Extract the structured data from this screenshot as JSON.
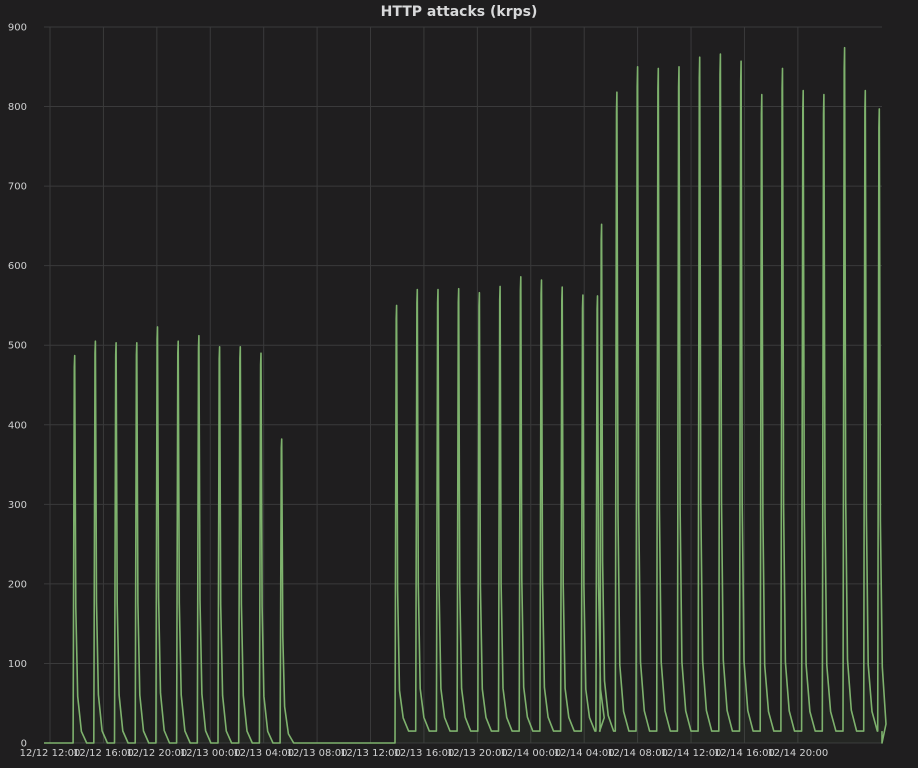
{
  "chart_data": {
    "type": "line",
    "title": "HTTP attacks (krps)",
    "xlabel": "",
    "ylabel": "",
    "ylim": [
      0,
      900
    ],
    "yticks": [
      0,
      100,
      200,
      300,
      400,
      500,
      600,
      700,
      800,
      900
    ],
    "xlim": [
      -0.45,
      62.3
    ],
    "xticks": [
      {
        "x": 0,
        "label": "12/12 12:00"
      },
      {
        "x": 4,
        "label": "12/12 16:00"
      },
      {
        "x": 8,
        "label": "12/12 20:00"
      },
      {
        "x": 12,
        "label": "12/13 00:00"
      },
      {
        "x": 16,
        "label": "12/13 04:00"
      },
      {
        "x": 20,
        "label": "12/13 08:00"
      },
      {
        "x": 24,
        "label": "12/13 12:00"
      },
      {
        "x": 28,
        "label": "12/13 16:00"
      },
      {
        "x": 32,
        "label": "12/13 20:00"
      },
      {
        "x": 36,
        "label": "12/14 00:00"
      },
      {
        "x": 40,
        "label": "12/14 04:00"
      },
      {
        "x": 44,
        "label": "12/14 08:00"
      },
      {
        "x": 48,
        "label": "12/14 12:00"
      },
      {
        "x": 52,
        "label": "12/14 16:00"
      },
      {
        "x": 56,
        "label": "12/14 20:00"
      }
    ],
    "grid": true,
    "line_color": "#7eb26d",
    "series": [
      {
        "name": "",
        "peaks": [
          {
            "x": 1.85,
            "y": 487
          },
          {
            "x": 3.4,
            "y": 505
          },
          {
            "x": 4.95,
            "y": 503
          },
          {
            "x": 6.5,
            "y": 503
          },
          {
            "x": 8.05,
            "y": 523
          },
          {
            "x": 9.6,
            "y": 505
          },
          {
            "x": 11.15,
            "y": 512
          },
          {
            "x": 12.7,
            "y": 498
          },
          {
            "x": 14.25,
            "y": 498
          },
          {
            "x": 15.8,
            "y": 490
          },
          {
            "x": 17.35,
            "y": 382
          },
          {
            "x": 25.95,
            "y": 550
          },
          {
            "x": 27.5,
            "y": 570
          },
          {
            "x": 29.05,
            "y": 570
          },
          {
            "x": 30.6,
            "y": 571
          },
          {
            "x": 32.15,
            "y": 566
          },
          {
            "x": 33.7,
            "y": 574
          },
          {
            "x": 35.25,
            "y": 586
          },
          {
            "x": 36.8,
            "y": 582
          },
          {
            "x": 38.35,
            "y": 573
          },
          {
            "x": 39.9,
            "y": 563
          },
          {
            "x": 41.0,
            "y": 562
          },
          {
            "x": 41.3,
            "y": 652
          },
          {
            "x": 42.45,
            "y": 818
          },
          {
            "x": 44.0,
            "y": 850
          },
          {
            "x": 45.55,
            "y": 848
          },
          {
            "x": 47.1,
            "y": 850
          },
          {
            "x": 48.65,
            "y": 862
          },
          {
            "x": 50.2,
            "y": 866
          },
          {
            "x": 51.75,
            "y": 857
          },
          {
            "x": 53.3,
            "y": 815
          },
          {
            "x": 54.85,
            "y": 848
          },
          {
            "x": 56.4,
            "y": 820
          },
          {
            "x": 57.95,
            "y": 815
          },
          {
            "x": 59.5,
            "y": 874
          },
          {
            "x": 61.05,
            "y": 820
          },
          {
            "x": 62.1,
            "y": 797
          }
        ],
        "baseline_after": [
          {
            "from": 0,
            "to": 17.6,
            "y": 0
          },
          {
            "from": 17.6,
            "to": 25.8,
            "y": 0
          },
          {
            "from": 25.8,
            "to": 62.3,
            "y": 15
          }
        ]
      }
    ]
  }
}
